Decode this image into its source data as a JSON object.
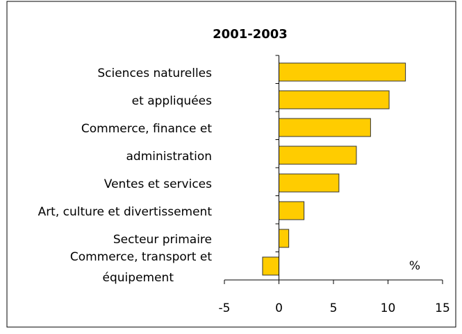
{
  "chart_data": {
    "type": "barh",
    "title": "2001-2003",
    "categories": [
      "Sciences naturelles",
      "et appliquées",
      "Commerce, finance et",
      "administration",
      "Ventes et services",
      "Art, culture et divertissement",
      "Secteur primaire",
      [
        "Commerce, transport et",
        "équipement"
      ]
    ],
    "values": [
      11.6,
      10.1,
      8.4,
      7.1,
      5.5,
      2.3,
      0.9,
      -1.5
    ],
    "color": "#ffcc00",
    "xlim": [
      -5,
      15
    ],
    "xticks": [
      -5,
      0,
      5,
      10,
      15
    ],
    "unit_label": "%"
  }
}
